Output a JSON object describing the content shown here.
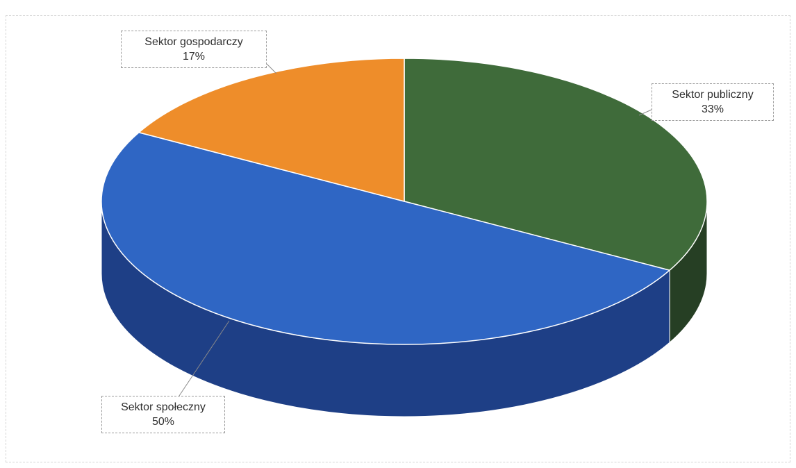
{
  "chart_data": {
    "type": "pie",
    "title": "",
    "series": [
      {
        "name": "",
        "values": [
          33,
          50,
          17
        ]
      }
    ],
    "categories": [
      "Sektor publiczny",
      "Sektor społeczny",
      "Sektor gospodarczy"
    ],
    "slices": [
      {
        "label": "Sektor publiczny",
        "value": 33,
        "value_label": "33%",
        "color": "#3f6b3a",
        "side_color": "#263f24"
      },
      {
        "label": "Sektor społeczny",
        "value": 50,
        "value_label": "50%",
        "color": "#2f66c4",
        "side_color": "#1e3f86"
      },
      {
        "label": "Sektor gospodarczy",
        "value": 17,
        "value_label": "17%",
        "color": "#ee8d2a",
        "side_color": "#b86616"
      }
    ],
    "start_angle_deg": 0,
    "direction": "clockwise",
    "style": "3d-pie",
    "legend": "none",
    "data_labels": "callout"
  }
}
